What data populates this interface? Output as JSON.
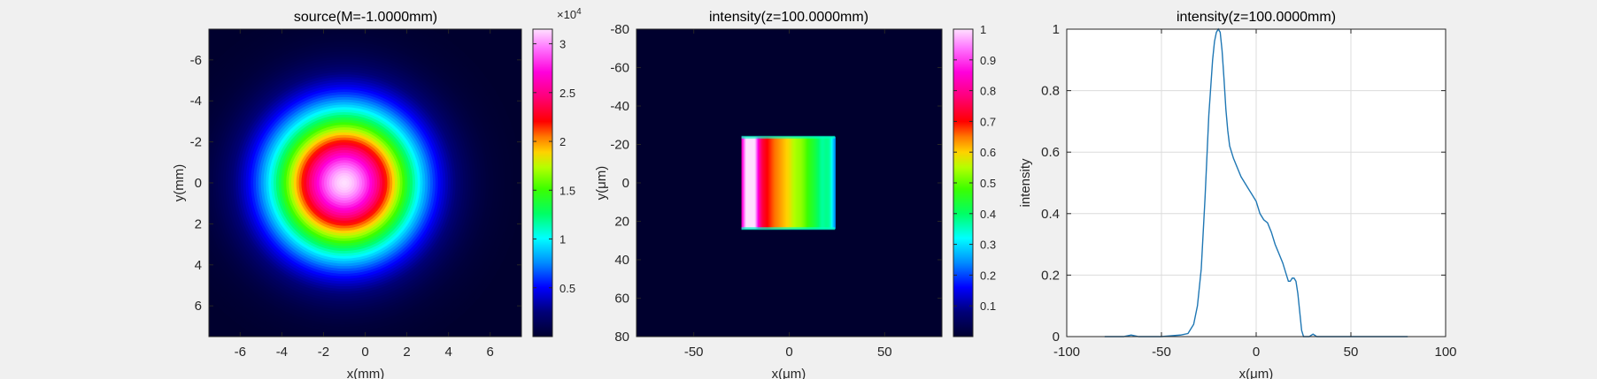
{
  "colors": {
    "figure_bg": "#f0f0f0",
    "axes_bg": "#ffffff",
    "line": "#1f77b4",
    "grid": "#dcdcdc",
    "text": "#262626"
  },
  "chart_data": [
    {
      "type": "heatmap",
      "title": "source(M=-1.0000mm)",
      "xlabel": "x(mm)",
      "ylabel": "y(mm)",
      "xlim": [
        -7.5,
        7.5
      ],
      "ylim": [
        -7.5,
        7.5
      ],
      "y_reversed": true,
      "xticks": [
        -6,
        -4,
        -2,
        0,
        2,
        4,
        6
      ],
      "yticks": [
        -6,
        -4,
        -2,
        0,
        2,
        4,
        6
      ],
      "xtick_labels": [
        "-6",
        "-4",
        "-2",
        "0",
        "2",
        "4",
        "6"
      ],
      "ytick_labels": [
        "-6",
        "-4",
        "-2",
        "0",
        "2",
        "4",
        "6"
      ],
      "colormap": "hsv-like",
      "colorbar": {
        "min": 0,
        "max": 31500,
        "ticks": [
          5000,
          10000,
          15000,
          20000,
          25000,
          30000
        ],
        "tick_labels": [
          "0.5",
          "1",
          "1.5",
          "2",
          "2.5",
          "3"
        ],
        "exponent_label": "×10",
        "exponent_power": "4"
      },
      "beam": {
        "shape": "gaussian",
        "center_x": -1.0,
        "center_y": 0.0,
        "peak": 31500,
        "sigma_mm": 2.4
      }
    },
    {
      "type": "heatmap",
      "title": "intensity(z=100.0000mm)",
      "xlabel": "x(μm)",
      "ylabel": "y(μm)",
      "xlim": [
        -80,
        80
      ],
      "ylim": [
        -80,
        80
      ],
      "y_reversed": true,
      "xticks": [
        -50,
        0,
        50
      ],
      "yticks": [
        -80,
        -60,
        -40,
        -20,
        0,
        20,
        40,
        60,
        80
      ],
      "xtick_labels": [
        "-50",
        "0",
        "50"
      ],
      "ytick_labels": [
        "-80",
        "-60",
        "-40",
        "-20",
        "0",
        "20",
        "40",
        "60",
        "80"
      ],
      "colormap": "hsv-like",
      "colorbar": {
        "min": 0,
        "max": 1,
        "ticks": [
          0.1,
          0.2,
          0.3,
          0.4,
          0.5,
          0.6,
          0.7,
          0.8,
          0.9,
          1
        ],
        "tick_labels": [
          "0.1",
          "0.2",
          "0.3",
          "0.4",
          "0.5",
          "0.6",
          "0.7",
          "0.8",
          "0.9",
          "1"
        ]
      },
      "beam": {
        "shape": "rectangle",
        "x_range": [
          -25,
          24
        ],
        "y_range": [
          -24,
          24
        ],
        "profile_ref": "line_profile"
      }
    },
    {
      "type": "line",
      "title": "intensity(z=100.0000mm)",
      "xlabel": "x(μm)",
      "ylabel": "intensity",
      "xlim": [
        -100,
        100
      ],
      "ylim": [
        0,
        1
      ],
      "grid": true,
      "xticks": [
        -100,
        -50,
        0,
        50,
        100
      ],
      "yticks": [
        0,
        0.2,
        0.4,
        0.6,
        0.8,
        1
      ],
      "xtick_labels": [
        "-100",
        "-50",
        "0",
        "50",
        "100"
      ],
      "ytick_labels": [
        "0",
        "0.2",
        "0.4",
        "0.6",
        "0.8",
        "1"
      ],
      "series": [
        {
          "x": [
            -80,
            -70,
            -66,
            -62,
            -50,
            -40,
            -36,
            -33,
            -31,
            -29,
            -27,
            -25,
            -23,
            -22,
            -21,
            -20,
            -19,
            -18,
            -17,
            -16,
            -15,
            -14,
            -13,
            -12,
            -10,
            -8,
            -6,
            -4,
            -2,
            0,
            2,
            4,
            6,
            8,
            10,
            12,
            14,
            16,
            17,
            18,
            19,
            20,
            21,
            22,
            23,
            24,
            25,
            26,
            28,
            30,
            32,
            40,
            60,
            80
          ],
          "y": [
            0.0,
            0.0,
            0.005,
            0.0,
            0.0,
            0.005,
            0.01,
            0.04,
            0.1,
            0.22,
            0.45,
            0.72,
            0.9,
            0.96,
            0.99,
            1.0,
            0.99,
            0.93,
            0.84,
            0.74,
            0.67,
            0.62,
            0.6,
            0.58,
            0.55,
            0.52,
            0.5,
            0.48,
            0.46,
            0.44,
            0.4,
            0.38,
            0.37,
            0.34,
            0.3,
            0.27,
            0.24,
            0.2,
            0.18,
            0.18,
            0.19,
            0.19,
            0.18,
            0.14,
            0.08,
            0.02,
            0.0,
            0.0,
            0.0,
            0.008,
            0.0,
            0.0,
            0.0,
            0.0
          ]
        }
      ]
    }
  ]
}
